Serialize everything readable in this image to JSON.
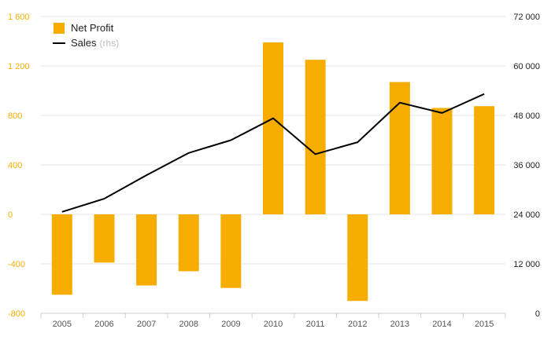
{
  "chart_data": {
    "type": "bar",
    "categories": [
      "2005",
      "2006",
      "2007",
      "2008",
      "2009",
      "2010",
      "2011",
      "2012",
      "2013",
      "2014",
      "2015"
    ],
    "series": [
      {
        "name": "Net Profit",
        "type": "bar",
        "axis": "left",
        "color": "#f6ad00",
        "values": [
          -650,
          -390,
          -575,
          -460,
          -595,
          1390,
          1250,
          -700,
          1070,
          860,
          875
        ]
      },
      {
        "name": "Sales",
        "name_suffix": "(rhs)",
        "type": "line",
        "axis": "right",
        "color": "#000000",
        "values": [
          24600,
          27800,
          33500,
          38900,
          42000,
          47300,
          38600,
          41500,
          51100,
          48600,
          53200
        ]
      }
    ],
    "y_left": {
      "ticks": [
        "1 600",
        "1 200",
        "800",
        "400",
        "0",
        "-400",
        "-800"
      ],
      "ylim": [
        -800,
        1600
      ]
    },
    "y_right": {
      "ticks": [
        "72 000",
        "60 000",
        "48 000",
        "36 000",
        "24 000",
        "12 000",
        "0"
      ],
      "ylim": [
        0,
        72000
      ]
    },
    "grid": "horizontal",
    "legend_position": "top-left"
  }
}
